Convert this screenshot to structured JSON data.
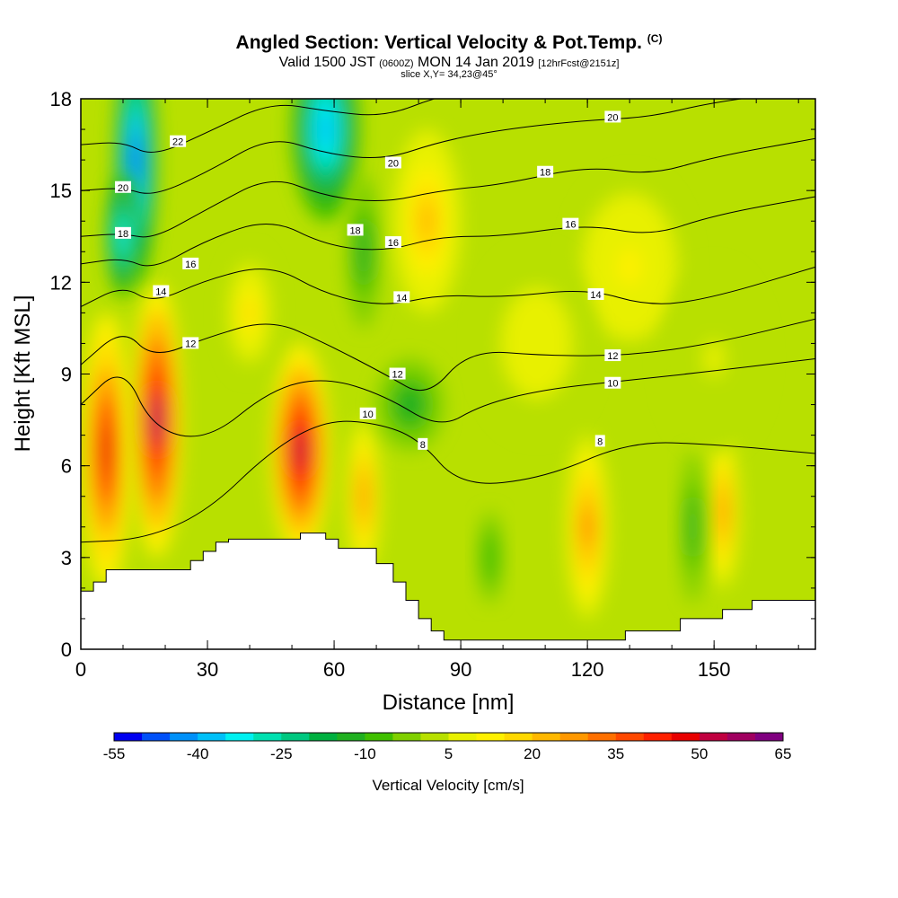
{
  "header": {
    "title": "Angled Section: Vertical Velocity & Pot.Temp.",
    "title_units": "(C)",
    "valid_prefix": "Valid 1500 JST",
    "valid_utc": "(0600Z)",
    "valid_date": "MON 14 Jan 2019",
    "forecast": "[12hrFcst@2151z]",
    "slice": "slice X,Y= 34,23@45°"
  },
  "chart_data": {
    "type": "heatmap",
    "title": "Angled Section: Vertical Velocity & Pot.Temp. (C)",
    "xlabel": "Distance [nm]",
    "ylabel": "Height [Kft MSL]",
    "xlim": [
      0,
      174
    ],
    "ylim": [
      0,
      18
    ],
    "xticks": [
      0,
      30,
      60,
      90,
      120,
      150
    ],
    "yticks": [
      0,
      3,
      6,
      9,
      12,
      15,
      18
    ],
    "colorbar": {
      "label": "Vertical Velocity [cm/s]",
      "tick_labels": [
        "-55",
        "-40",
        "-25",
        "-10",
        "5",
        "20",
        "35",
        "50",
        "65"
      ],
      "levels": [
        -55,
        -50,
        -45,
        -40,
        -35,
        -30,
        -25,
        -20,
        -15,
        -10,
        -5,
        0,
        5,
        10,
        15,
        20,
        25,
        30,
        35,
        40,
        45,
        50,
        55,
        60,
        65
      ],
      "colors": [
        "#0000f0",
        "#0050f8",
        "#0090f8",
        "#00c0f8",
        "#00f0f0",
        "#00e0b0",
        "#00c880",
        "#00b040",
        "#20b020",
        "#40c000",
        "#80d000",
        "#b8e000",
        "#e8f000",
        "#fff000",
        "#ffd800",
        "#ffb800",
        "#ff9800",
        "#ff7000",
        "#ff4800",
        "#ff2000",
        "#e80000",
        "#c00040",
        "#a00060",
        "#800080"
      ]
    },
    "velocity_features": [
      {
        "x": 6,
        "y": 6.5,
        "w": 6,
        "h": 4.5,
        "value": 45
      },
      {
        "x": 18,
        "y": 7.5,
        "w": 6,
        "h": 4.5,
        "value": 55
      },
      {
        "x": 52,
        "y": 6.5,
        "w": 7,
        "h": 3.5,
        "value": 50
      },
      {
        "x": 67,
        "y": 5.0,
        "w": 4,
        "h": 2.5,
        "value": 25
      },
      {
        "x": 120,
        "y": 4.0,
        "w": 5,
        "h": 3,
        "value": 30
      },
      {
        "x": 152,
        "y": 4.5,
        "w": 4,
        "h": 2.5,
        "value": 25
      },
      {
        "x": 13,
        "y": 16.0,
        "w": 5,
        "h": 4,
        "value": -50
      },
      {
        "x": 10,
        "y": 13.5,
        "w": 4,
        "h": 2,
        "value": -35
      },
      {
        "x": 58,
        "y": 17.0,
        "w": 8,
        "h": 3,
        "value": -40
      },
      {
        "x": 67,
        "y": 13.0,
        "w": 4,
        "h": 2.5,
        "value": -15
      },
      {
        "x": 78,
        "y": 8.0,
        "w": 8,
        "h": 1.5,
        "value": -15
      },
      {
        "x": 145,
        "y": 4.0,
        "w": 3,
        "h": 2.5,
        "value": -15
      },
      {
        "x": 97,
        "y": 3.0,
        "w": 3,
        "h": 1.5,
        "value": -10
      },
      {
        "x": 82,
        "y": 14.0,
        "w": 8,
        "h": 3,
        "value": 20
      },
      {
        "x": 130,
        "y": 12.5,
        "w": 14,
        "h": 3,
        "value": 10
      },
      {
        "x": 108,
        "y": 10.0,
        "w": 14,
        "h": 3,
        "value": 8
      },
      {
        "x": 150,
        "y": 9.5,
        "w": 12,
        "h": 3,
        "value": 5
      },
      {
        "x": 40,
        "y": 11.0,
        "w": 6,
        "h": 2,
        "value": 15
      }
    ],
    "terrain": [
      [
        0,
        0
      ],
      [
        0,
        1.9
      ],
      [
        3,
        1.9
      ],
      [
        3,
        2.2
      ],
      [
        6,
        2.2
      ],
      [
        6,
        2.6
      ],
      [
        26,
        2.6
      ],
      [
        26,
        2.9
      ],
      [
        29,
        2.9
      ],
      [
        29,
        3.2
      ],
      [
        32,
        3.2
      ],
      [
        32,
        3.5
      ],
      [
        35,
        3.5
      ],
      [
        35,
        3.6
      ],
      [
        52,
        3.6
      ],
      [
        52,
        3.8
      ],
      [
        58,
        3.8
      ],
      [
        58,
        3.6
      ],
      [
        61,
        3.6
      ],
      [
        61,
        3.3
      ],
      [
        70,
        3.3
      ],
      [
        70,
        2.8
      ],
      [
        74,
        2.8
      ],
      [
        74,
        2.2
      ],
      [
        77,
        2.2
      ],
      [
        77,
        1.6
      ],
      [
        80,
        1.6
      ],
      [
        80,
        1.0
      ],
      [
        83,
        1.0
      ],
      [
        83,
        0.6
      ],
      [
        86,
        0.6
      ],
      [
        86,
        0.3
      ],
      [
        129,
        0.3
      ],
      [
        129,
        0.6
      ],
      [
        142,
        0.6
      ],
      [
        142,
        1.0
      ],
      [
        145,
        1.0
      ],
      [
        145,
        1.0
      ],
      [
        152,
        1.0
      ],
      [
        152,
        1.3
      ],
      [
        159,
        1.3
      ],
      [
        159,
        1.6
      ],
      [
        174,
        1.6
      ],
      [
        174,
        0
      ]
    ],
    "isentropes": [
      {
        "label": "8",
        "points": [
          [
            0,
            3.5
          ],
          [
            15,
            3.6
          ],
          [
            30,
            4.5
          ],
          [
            45,
            6.5
          ],
          [
            58,
            7.5
          ],
          [
            70,
            7.4
          ],
          [
            80,
            6.9
          ],
          [
            90,
            5.3
          ],
          [
            110,
            5.6
          ],
          [
            130,
            6.8
          ],
          [
            150,
            6.7
          ],
          [
            174,
            6.4
          ]
        ]
      },
      {
        "label": "10",
        "points": [
          [
            0,
            8.0
          ],
          [
            10,
            9.3
          ],
          [
            17,
            7.2
          ],
          [
            30,
            6.8
          ],
          [
            45,
            8.5
          ],
          [
            58,
            8.9
          ],
          [
            72,
            8.3
          ],
          [
            85,
            7.2
          ],
          [
            95,
            8.0
          ],
          [
            110,
            8.5
          ],
          [
            130,
            8.8
          ],
          [
            150,
            9.1
          ],
          [
            174,
            9.5
          ]
        ]
      },
      {
        "label": "12",
        "points": [
          [
            0,
            9.3
          ],
          [
            10,
            10.5
          ],
          [
            17,
            9.5
          ],
          [
            30,
            10.2
          ],
          [
            45,
            10.8
          ],
          [
            58,
            10.0
          ],
          [
            72,
            9.0
          ],
          [
            82,
            8.2
          ],
          [
            92,
            9.8
          ],
          [
            110,
            9.6
          ],
          [
            130,
            9.6
          ],
          [
            150,
            10.0
          ],
          [
            174,
            10.8
          ]
        ]
      },
      {
        "label": "14",
        "points": [
          [
            0,
            11.2
          ],
          [
            10,
            11.9
          ],
          [
            17,
            11.3
          ],
          [
            30,
            12.1
          ],
          [
            45,
            12.6
          ],
          [
            58,
            11.6
          ],
          [
            72,
            11.2
          ],
          [
            85,
            11.6
          ],
          [
            100,
            11.5
          ],
          [
            120,
            11.8
          ],
          [
            135,
            11.2
          ],
          [
            150,
            11.5
          ],
          [
            174,
            12.5
          ]
        ]
      },
      {
        "label": "16",
        "points": [
          [
            0,
            12.6
          ],
          [
            10,
            12.8
          ],
          [
            17,
            12.4
          ],
          [
            30,
            13.4
          ],
          [
            45,
            14.1
          ],
          [
            58,
            13.2
          ],
          [
            72,
            13.0
          ],
          [
            85,
            13.5
          ],
          [
            100,
            13.5
          ],
          [
            120,
            13.9
          ],
          [
            135,
            13.5
          ],
          [
            150,
            14.2
          ],
          [
            174,
            14.8
          ]
        ]
      },
      {
        "label": "18",
        "points": [
          [
            0,
            13.5
          ],
          [
            10,
            13.6
          ],
          [
            17,
            13.4
          ],
          [
            30,
            14.4
          ],
          [
            45,
            15.5
          ],
          [
            58,
            14.8
          ],
          [
            72,
            14.6
          ],
          [
            85,
            15.0
          ],
          [
            100,
            15.2
          ],
          [
            120,
            15.8
          ],
          [
            135,
            15.5
          ],
          [
            150,
            16.1
          ],
          [
            174,
            16.7
          ]
        ]
      },
      {
        "label": "20",
        "points": [
          [
            0,
            15.0
          ],
          [
            10,
            15.1
          ],
          [
            17,
            14.8
          ],
          [
            30,
            15.6
          ],
          [
            45,
            16.8
          ],
          [
            58,
            16.2
          ],
          [
            72,
            16.0
          ],
          [
            85,
            16.6
          ],
          [
            100,
            17.0
          ],
          [
            120,
            17.3
          ],
          [
            135,
            17.4
          ],
          [
            150,
            17.9
          ],
          [
            174,
            18.3
          ]
        ]
      },
      {
        "label": "22",
        "points": [
          [
            0,
            16.5
          ],
          [
            10,
            16.6
          ],
          [
            17,
            16.1
          ],
          [
            30,
            16.9
          ],
          [
            45,
            17.9
          ],
          [
            58,
            17.6
          ],
          [
            72,
            17.4
          ],
          [
            85,
            18.1
          ],
          [
            100,
            18.5
          ]
        ]
      }
    ],
    "contour_labels": [
      {
        "text": "22",
        "x": 23,
        "y": 16.6
      },
      {
        "text": "20",
        "x": 10,
        "y": 15.1
      },
      {
        "text": "18",
        "x": 10,
        "y": 13.6
      },
      {
        "text": "16",
        "x": 26,
        "y": 12.6
      },
      {
        "text": "14",
        "x": 19,
        "y": 11.7
      },
      {
        "text": "12",
        "x": 26,
        "y": 10.0
      },
      {
        "text": "20",
        "x": 74,
        "y": 15.9
      },
      {
        "text": "18",
        "x": 65,
        "y": 13.7
      },
      {
        "text": "16",
        "x": 74,
        "y": 13.3
      },
      {
        "text": "14",
        "x": 76,
        "y": 11.5
      },
      {
        "text": "12",
        "x": 75,
        "y": 9.0
      },
      {
        "text": "10",
        "x": 68,
        "y": 7.7
      },
      {
        "text": "8",
        "x": 81,
        "y": 6.7
      },
      {
        "text": "20",
        "x": 126,
        "y": 17.4
      },
      {
        "text": "18",
        "x": 110,
        "y": 15.6
      },
      {
        "text": "16",
        "x": 116,
        "y": 13.9
      },
      {
        "text": "14",
        "x": 122,
        "y": 11.6
      },
      {
        "text": "12",
        "x": 126,
        "y": 9.6
      },
      {
        "text": "10",
        "x": 126,
        "y": 8.7
      },
      {
        "text": "8",
        "x": 123,
        "y": 6.8
      }
    ]
  }
}
